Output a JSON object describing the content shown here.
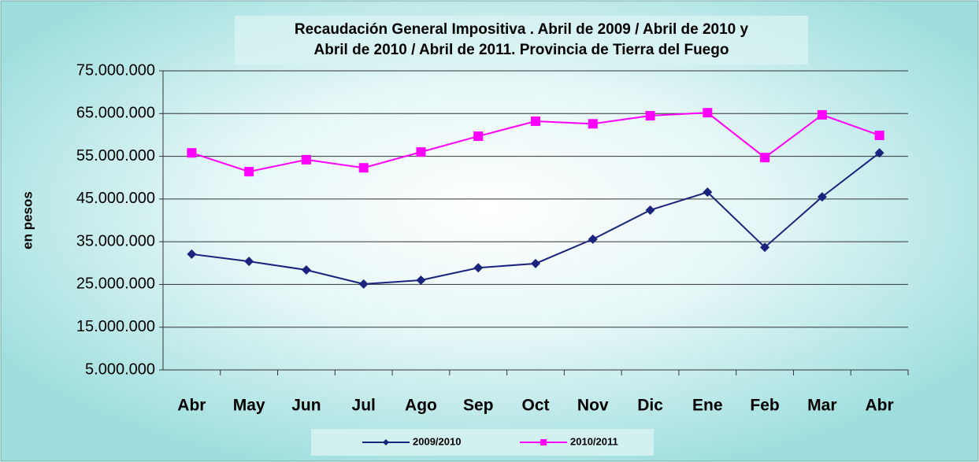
{
  "chart_data": {
    "type": "line",
    "title": [
      "Recaudación General Impositiva . Abril de 2009 / Abril de 2010  y",
      "Abril de 2010 / Abril de 2011. Provincia de Tierra del Fuego"
    ],
    "y_label": "en pesos",
    "categories": [
      "Abr",
      "May",
      "Jun",
      "Jul",
      "Ago",
      "Sep",
      "Oct",
      "Nov",
      "Dic",
      "Ene",
      "Feb",
      "Mar",
      "Abr"
    ],
    "series": [
      {
        "name": "2009/2010",
        "color": "#1a237e",
        "marker": "diamond",
        "values": [
          32100000,
          30400000,
          28400000,
          25100000,
          26000000,
          28900000,
          29900000,
          35600000,
          42400000,
          46600000,
          33700000,
          45500000,
          55800000
        ]
      },
      {
        "name": "2010/2011",
        "color": "#ff00ff",
        "marker": "square",
        "values": [
          55800000,
          51400000,
          54200000,
          52300000,
          56000000,
          59700000,
          63200000,
          62600000,
          64500000,
          65200000,
          54700000,
          64700000,
          59900000
        ]
      }
    ],
    "ylim": [
      5000000,
      75000000
    ],
    "yticks": [
      {
        "value": 5000000,
        "label": "5.000.000"
      },
      {
        "value": 15000000,
        "label": "15.000.000"
      },
      {
        "value": 25000000,
        "label": "25.000.000"
      },
      {
        "value": 35000000,
        "label": "35.000.000"
      },
      {
        "value": 45000000,
        "label": "45.000.000"
      },
      {
        "value": 55000000,
        "label": "55.000.000"
      },
      {
        "value": 65000000,
        "label": "65.000.000"
      },
      {
        "value": 75000000,
        "label": "75.000.000"
      }
    ],
    "grid": true,
    "legend": "bottom"
  }
}
